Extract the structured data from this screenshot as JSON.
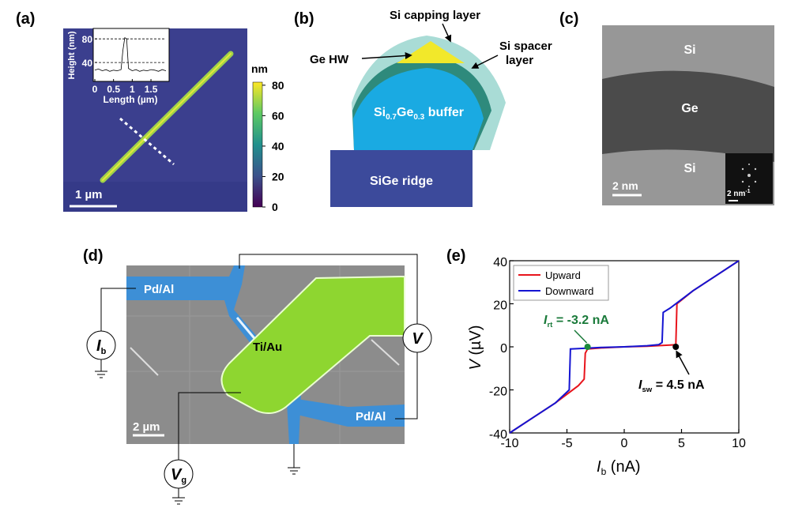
{
  "panels": {
    "a": {
      "label": "(a)",
      "scale": "1 µm",
      "colorbar": {
        "unit": "nm",
        "lim": [
          0,
          82
        ],
        "ticks": [
          0,
          20,
          40,
          60,
          80
        ]
      }
    },
    "b": {
      "label": "(b)",
      "capping": "Si capping layer",
      "hw": "Ge HW",
      "spacer": [
        "Si spacer",
        "layer"
      ],
      "buffer": {
        "a": "Si",
        "s1": "0.7",
        "b": "Ge",
        "s2": "0.3",
        "c": " buffer"
      },
      "ridge": "SiGe ridge"
    },
    "c": {
      "label": "(c)",
      "top": "Si",
      "mid": "Ge",
      "bottom": "Si",
      "scale": "2 nm",
      "fft": {
        "text": "2 nm",
        "sup": "-1"
      }
    },
    "d": {
      "label": "(d)",
      "pad1": "Pd/Al",
      "pad2": "Pd/Al",
      "gate": "Ti/Au",
      "scale": "2 µm",
      "ib": {
        "symbol": "I",
        "sub": "b"
      },
      "v": "V",
      "vg": {
        "symbol": "V",
        "sub": "g"
      }
    },
    "e": {
      "label": "(e)"
    }
  },
  "chart_data": [
    {
      "type": "line",
      "xlabel": "Length (µm)",
      "ylabel": "Height (nm)",
      "color": "#000000",
      "x": [
        0,
        0.1,
        0.2,
        0.3,
        0.4,
        0.5,
        0.6,
        0.7,
        0.75,
        0.8,
        0.85,
        0.9,
        1.0,
        1.1,
        1.2,
        1.3,
        1.4,
        1.5,
        1.6,
        1.7,
        1.8,
        1.9
      ],
      "values": [
        27,
        29,
        26,
        28,
        25,
        27,
        26,
        28,
        60,
        82,
        80,
        30,
        26,
        28,
        25,
        27,
        26,
        28,
        27,
        25,
        28,
        26
      ],
      "xlim": [
        0,
        1.9
      ],
      "ylim": [
        8,
        95
      ],
      "xticks": [
        0,
        0.5,
        1,
        1.5
      ],
      "yticks": [
        40,
        80
      ],
      "grid": true
    },
    {
      "type": "line",
      "xlabel": {
        "symbol": "I",
        "sub": "b",
        "rest": " (nA)"
      },
      "ylabel": {
        "symbol": "V",
        "rest": " (µV)"
      },
      "xlim": [
        -10,
        10
      ],
      "ylim": [
        -40,
        40
      ],
      "xticks": [
        -10,
        -5,
        0,
        5,
        10
      ],
      "yticks": [
        -40,
        -20,
        0,
        20,
        40
      ],
      "legend": "upper left",
      "series": [
        {
          "name": "Upward",
          "color": "#e8141c",
          "x": [
            -10,
            -8,
            -6,
            -4,
            -3.5,
            -3.4,
            -3.2,
            -2,
            0,
            2,
            4,
            4.5,
            4.6,
            6,
            8,
            10
          ],
          "values": [
            -40,
            -33,
            -26,
            -18,
            -15,
            -3,
            -1,
            -0.5,
            0,
            0.3,
            0.8,
            1,
            20,
            26,
            33,
            40
          ]
        },
        {
          "name": "Downward",
          "color": "#1414d2",
          "x": [
            10,
            8,
            6,
            4,
            3.4,
            3.3,
            3,
            2,
            0,
            -2,
            -4,
            -4.7,
            -4.8,
            -6,
            -8,
            -10
          ],
          "values": [
            40,
            33,
            26,
            18,
            16,
            2,
            1,
            0.5,
            0,
            -0.3,
            -0.8,
            -1,
            -20,
            -26,
            -33,
            -40
          ]
        }
      ],
      "markers": [
        {
          "x": -3.2,
          "y": 0,
          "color": "#1a8a3a"
        },
        {
          "x": 4.5,
          "y": 0,
          "color": "#000000"
        }
      ],
      "annotations": [
        {
          "symbol": "I",
          "sub": "rt",
          "text": " = -3.2 nA",
          "color": "#1a7a3a"
        },
        {
          "symbol": "I",
          "sub": "sw",
          "text": " = 4.5 nA",
          "color": "#000000"
        }
      ]
    }
  ]
}
